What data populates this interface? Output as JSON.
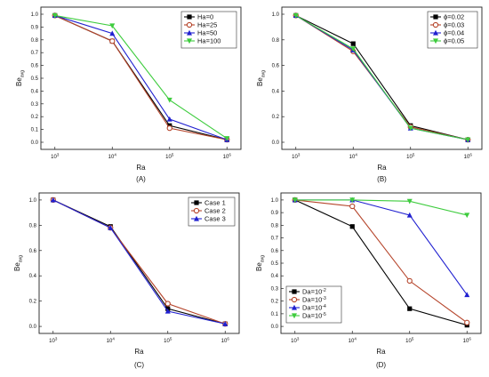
{
  "chart_data": [
    {
      "id": "A",
      "type": "line",
      "panel_label": "(A)",
      "xlabel": "Ra",
      "ylabel": "Be",
      "ylabel_sub": "avg",
      "x_ticks": [
        {
          "base": "10",
          "exp": "3"
        },
        {
          "base": "10",
          "exp": "4"
        },
        {
          "base": "10",
          "exp": "5"
        },
        {
          "base": "10",
          "exp": "6"
        }
      ],
      "ylim": [
        0,
        1.0
      ],
      "y_ticks": [
        "0.0",
        "0.1",
        "0.2",
        "0.3",
        "0.4",
        "0.5",
        "0.6",
        "0.7",
        "0.8",
        "0.9",
        "1.0"
      ],
      "legend_position": "top-right",
      "series": [
        {
          "name": "Ha=0",
          "color": "#000000",
          "marker": "square",
          "values": [
            0.99,
            0.79,
            0.13,
            0.02
          ]
        },
        {
          "name": "Ha=25",
          "color": "#b5442a",
          "marker": "circle",
          "values": [
            0.99,
            0.79,
            0.11,
            0.02
          ]
        },
        {
          "name": "Ha=50",
          "color": "#2020d0",
          "marker": "triangle-up",
          "values": [
            0.99,
            0.85,
            0.18,
            0.02
          ]
        },
        {
          "name": "Ha=100",
          "color": "#3ecc3e",
          "marker": "triangle-down",
          "values": [
            0.99,
            0.91,
            0.33,
            0.03
          ]
        }
      ]
    },
    {
      "id": "B",
      "type": "line",
      "panel_label": "(B)",
      "xlabel": "Ra",
      "ylabel": "Be",
      "ylabel_sub": "avg",
      "x_ticks": [
        {
          "base": "10",
          "exp": "3"
        },
        {
          "base": "10",
          "exp": "4"
        },
        {
          "base": "10",
          "exp": "5"
        },
        {
          "base": "10",
          "exp": "6"
        }
      ],
      "ylim": [
        0,
        1.0
      ],
      "y_ticks": [
        "0.0",
        "0.2",
        "0.4",
        "0.6",
        "0.8",
        "1.0"
      ],
      "legend_position": "top-right",
      "series": [
        {
          "name": "ϕ=0.02",
          "color": "#000000",
          "marker": "square",
          "values": [
            0.99,
            0.77,
            0.13,
            0.02
          ]
        },
        {
          "name": "ϕ=0.03",
          "color": "#b5442a",
          "marker": "circle",
          "values": [
            0.99,
            0.71,
            0.12,
            0.02
          ]
        },
        {
          "name": "ϕ=0.04",
          "color": "#2020d0",
          "marker": "triangle-up",
          "values": [
            0.99,
            0.72,
            0.11,
            0.02
          ]
        },
        {
          "name": "ϕ=0.05",
          "color": "#3ecc3e",
          "marker": "triangle-down",
          "values": [
            0.99,
            0.73,
            0.11,
            0.02
          ]
        }
      ]
    },
    {
      "id": "C",
      "type": "line",
      "panel_label": "(C)",
      "xlabel": "Ra",
      "ylabel": "Be",
      "ylabel_sub": "avg",
      "x_ticks": [
        {
          "base": "10",
          "exp": "3"
        },
        {
          "base": "10",
          "exp": "4"
        },
        {
          "base": "10",
          "exp": "5"
        },
        {
          "base": "10",
          "exp": "6"
        }
      ],
      "ylim": [
        0,
        1.0
      ],
      "y_ticks": [
        "0.0",
        "0.2",
        "0.4",
        "0.6",
        "0.8",
        "1.0"
      ],
      "legend_position": "top-right",
      "series": [
        {
          "name": "Case 1",
          "color": "#000000",
          "marker": "square",
          "values": [
            1.0,
            0.79,
            0.14,
            0.02
          ]
        },
        {
          "name": "Case 2",
          "color": "#b5442a",
          "marker": "circle",
          "values": [
            1.0,
            0.78,
            0.18,
            0.02
          ]
        },
        {
          "name": "Case 3",
          "color": "#2020d0",
          "marker": "triangle-up",
          "values": [
            1.0,
            0.78,
            0.12,
            0.02
          ]
        }
      ]
    },
    {
      "id": "D",
      "type": "line",
      "panel_label": "(D)",
      "xlabel": "Ra",
      "ylabel": "Be",
      "ylabel_sub": "avg",
      "x_ticks": [
        {
          "base": "10",
          "exp": "3"
        },
        {
          "base": "10",
          "exp": "4"
        },
        {
          "base": "10",
          "exp": "5"
        },
        {
          "base": "10",
          "exp": "6"
        }
      ],
      "ylim": [
        0,
        1.0
      ],
      "y_ticks": [
        "0.0",
        "0.1",
        "0.2",
        "0.3",
        "0.4",
        "0.5",
        "0.6",
        "0.7",
        "0.8",
        "0.9",
        "1.0"
      ],
      "legend_position": "bottom-left",
      "series": [
        {
          "name": "Da=10",
          "name_sup": "-2",
          "color": "#000000",
          "marker": "square",
          "values": [
            1.0,
            0.79,
            0.14,
            0.01
          ]
        },
        {
          "name": "Da=10",
          "name_sup": "-3",
          "color": "#b5442a",
          "marker": "circle",
          "values": [
            1.0,
            0.95,
            0.36,
            0.03
          ]
        },
        {
          "name": "Da=10",
          "name_sup": "-4",
          "color": "#2020d0",
          "marker": "triangle-up",
          "values": [
            1.0,
            1.0,
            0.88,
            0.25
          ]
        },
        {
          "name": "Da=10",
          "name_sup": "-5",
          "color": "#3ecc3e",
          "marker": "triangle-down",
          "values": [
            1.0,
            1.0,
            0.99,
            0.88
          ]
        }
      ]
    }
  ]
}
